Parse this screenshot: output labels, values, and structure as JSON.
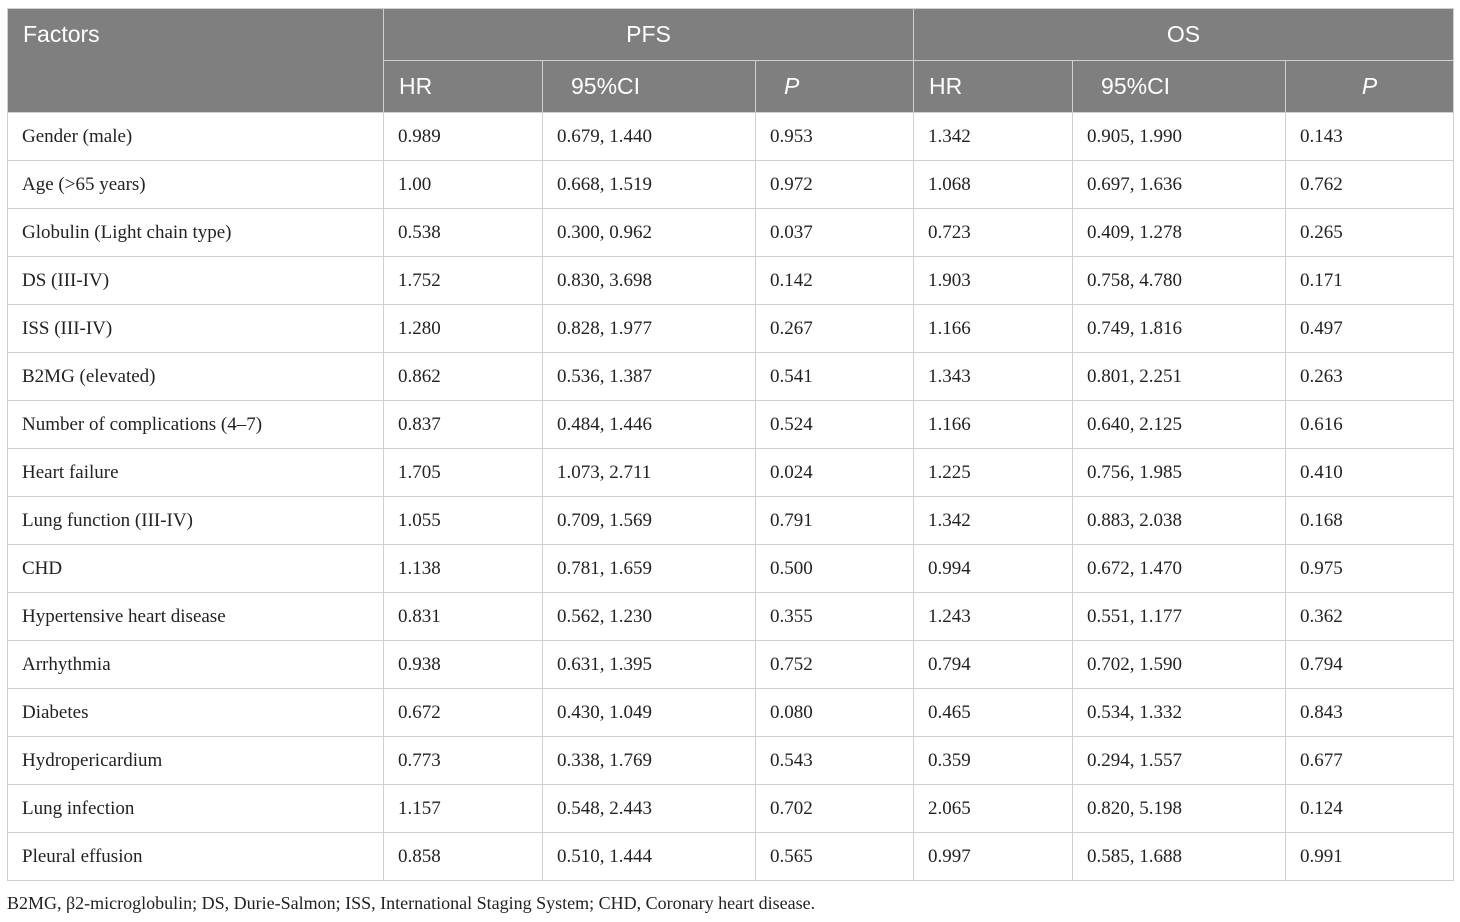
{
  "table": {
    "header": {
      "factors": "Factors",
      "groups": [
        "PFS",
        "OS"
      ],
      "subcolumns": [
        "HR",
        "95%CI",
        "P",
        "HR",
        "95%CI",
        "P"
      ]
    },
    "rows": [
      {
        "factor": "Gender (male)",
        "pfs_hr": "0.989",
        "pfs_ci": "0.679, 1.440",
        "pfs_p": "0.953",
        "os_hr": "1.342",
        "os_ci": "0.905, 1.990",
        "os_p": "0.143"
      },
      {
        "factor": "Age (>65 years)",
        "pfs_hr": "1.00",
        "pfs_ci": "0.668, 1.519",
        "pfs_p": "0.972",
        "os_hr": "1.068",
        "os_ci": "0.697, 1.636",
        "os_p": "0.762"
      },
      {
        "factor": "Globulin (Light chain type)",
        "pfs_hr": "0.538",
        "pfs_ci": "0.300, 0.962",
        "pfs_p": "0.037",
        "os_hr": "0.723",
        "os_ci": "0.409, 1.278",
        "os_p": "0.265"
      },
      {
        "factor": "DS (III-IV)",
        "pfs_hr": "1.752",
        "pfs_ci": "0.830, 3.698",
        "pfs_p": "0.142",
        "os_hr": "1.903",
        "os_ci": "0.758, 4.780",
        "os_p": "0.171"
      },
      {
        "factor": "ISS (III-IV)",
        "pfs_hr": "1.280",
        "pfs_ci": "0.828, 1.977",
        "pfs_p": "0.267",
        "os_hr": "1.166",
        "os_ci": "0.749, 1.816",
        "os_p": "0.497"
      },
      {
        "factor": "B2MG (elevated)",
        "pfs_hr": "0.862",
        "pfs_ci": "0.536, 1.387",
        "pfs_p": "0.541",
        "os_hr": "1.343",
        "os_ci": "0.801, 2.251",
        "os_p": "0.263"
      },
      {
        "factor": "Number of complications (4–7)",
        "pfs_hr": "0.837",
        "pfs_ci": "0.484, 1.446",
        "pfs_p": "0.524",
        "os_hr": "1.166",
        "os_ci": "0.640, 2.125",
        "os_p": "0.616"
      },
      {
        "factor": "Heart failure",
        "pfs_hr": "1.705",
        "pfs_ci": "1.073, 2.711",
        "pfs_p": "0.024",
        "os_hr": "1.225",
        "os_ci": "0.756, 1.985",
        "os_p": "0.410"
      },
      {
        "factor": "Lung function (III-IV)",
        "pfs_hr": "1.055",
        "pfs_ci": "0.709, 1.569",
        "pfs_p": "0.791",
        "os_hr": "1.342",
        "os_ci": "0.883, 2.038",
        "os_p": "0.168"
      },
      {
        "factor": "CHD",
        "pfs_hr": "1.138",
        "pfs_ci": "0.781, 1.659",
        "pfs_p": "0.500",
        "os_hr": "0.994",
        "os_ci": "0.672, 1.470",
        "os_p": "0.975"
      },
      {
        "factor": "Hypertensive heart disease",
        "pfs_hr": "0.831",
        "pfs_ci": "0.562, 1.230",
        "pfs_p": "0.355",
        "os_hr": "1.243",
        "os_ci": "0.551, 1.177",
        "os_p": "0.362"
      },
      {
        "factor": "Arrhythmia",
        "pfs_hr": "0.938",
        "pfs_ci": "0.631, 1.395",
        "pfs_p": "0.752",
        "os_hr": "0.794",
        "os_ci": "0.702, 1.590",
        "os_p": "0.794"
      },
      {
        "factor": "Diabetes",
        "pfs_hr": "0.672",
        "pfs_ci": "0.430, 1.049",
        "pfs_p": "0.080",
        "os_hr": "0.465",
        "os_ci": "0.534, 1.332",
        "os_p": "0.843"
      },
      {
        "factor": "Hydropericardium",
        "pfs_hr": "0.773",
        "pfs_ci": "0.338, 1.769",
        "pfs_p": "0.543",
        "os_hr": "0.359",
        "os_ci": "0.294, 1.557",
        "os_p": "0.677"
      },
      {
        "factor": "Lung infection",
        "pfs_hr": "1.157",
        "pfs_ci": "0.548, 2.443",
        "pfs_p": "0.702",
        "os_hr": "2.065",
        "os_ci": "0.820, 5.198",
        "os_p": "0.124"
      },
      {
        "factor": "Pleural effusion",
        "pfs_hr": "0.858",
        "pfs_ci": "0.510, 1.444",
        "pfs_p": "0.565",
        "os_hr": "0.997",
        "os_ci": "0.585, 1.688",
        "os_p": "0.991"
      }
    ]
  },
  "footnote": "B2MG, β2-microglobulin; DS, Durie-Salmon; ISS, International Staging System; CHD, Coronary heart disease.",
  "colors": {
    "header_bg": "#7f7f7f",
    "header_text": "#ffffff",
    "grid": "#cfcfcf"
  }
}
